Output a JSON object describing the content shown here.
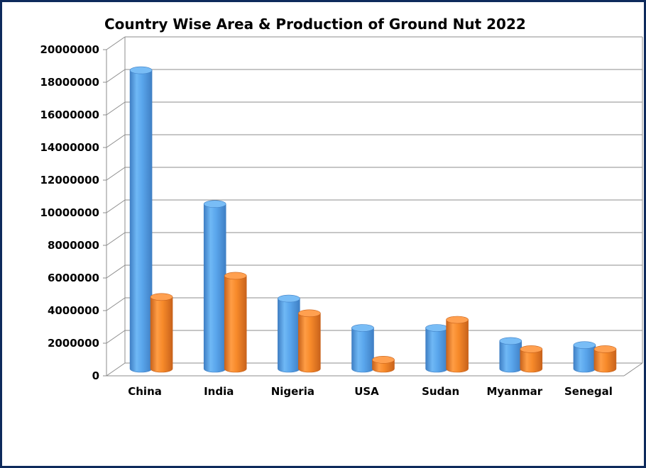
{
  "chart_data": {
    "type": "bar",
    "title": "Country Wise Area & Production of Ground Nut 2022",
    "xlabel": "",
    "ylabel": "",
    "categories": [
      "China",
      "India",
      "Nigeria",
      "USA",
      "Sudan",
      "Myanmar",
      "Senegal"
    ],
    "series": [
      {
        "color": "#5aaaf0",
        "values": [
          18300000,
          10100000,
          4300000,
          2500000,
          2500000,
          1700000,
          1450000
        ]
      },
      {
        "color": "#fb8a2c",
        "values": [
          4400000,
          5700000,
          3400000,
          550000,
          3000000,
          1200000,
          1200000
        ]
      }
    ],
    "ylim": [
      0,
      20000000
    ],
    "yticks": [
      "0",
      "2000000",
      "4000000",
      "6000000",
      "8000000",
      "10000000",
      "12000000",
      "14000000",
      "16000000",
      "18000000",
      "20000000"
    ],
    "grid": true,
    "legend": "none",
    "style": "3d-cylinder"
  }
}
